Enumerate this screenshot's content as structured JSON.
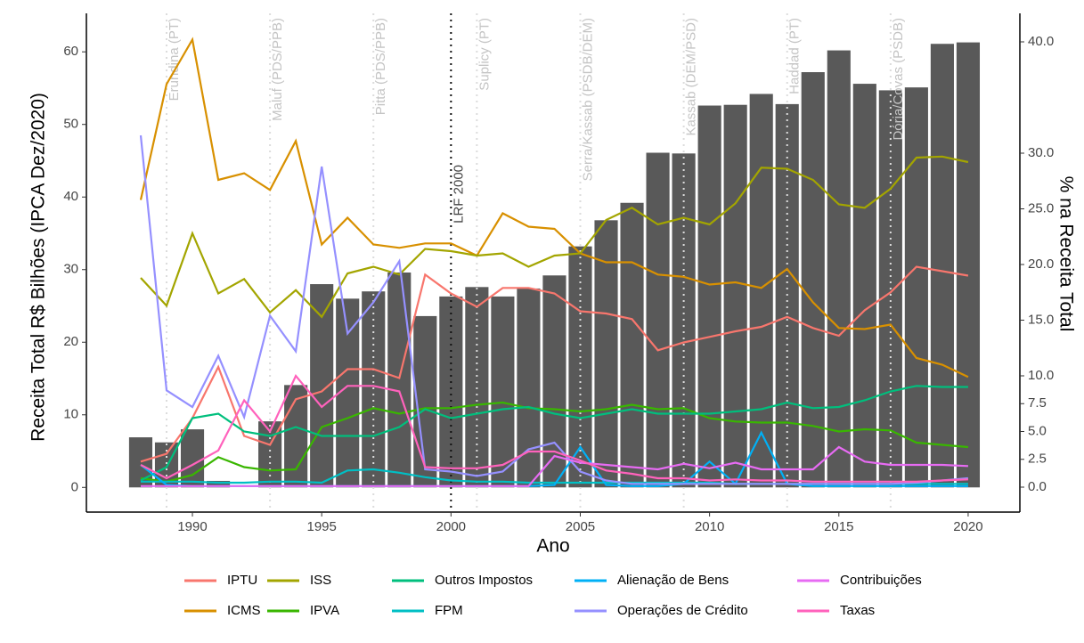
{
  "chart_data": {
    "type": "bar-line",
    "x_label": "Ano",
    "y_label": "Receita Total R$ Bilhões (IPCA Dez/2020)",
    "y2_label": "% na Receita Total",
    "x": [
      1988,
      1989,
      1990,
      1991,
      1992,
      1993,
      1994,
      1995,
      1996,
      1997,
      1998,
      1999,
      2000,
      2001,
      2002,
      2003,
      2004,
      2005,
      2006,
      2007,
      2008,
      2009,
      2010,
      2011,
      2012,
      2013,
      2014,
      2015,
      2016,
      2017,
      2018,
      2019,
      2020
    ],
    "values": [
      6.9,
      6.2,
      8.0,
      0.9,
      null,
      9.1,
      14.1,
      28.0,
      26.0,
      27.0,
      29.6,
      23.6,
      26.3,
      27.6,
      26.3,
      27.4,
      29.2,
      33.2,
      36.8,
      39.2,
      46.1,
      46.0,
      52.6,
      52.7,
      54.2,
      52.8,
      57.2,
      60.2,
      55.6,
      54.7,
      55.1,
      61.1,
      61.3
    ],
    "color": "#595959",
    "series": [
      {
        "name": "IPTU",
        "color": "#F8766D",
        "axis": "y2",
        "values": [
          2.3,
          3.0,
          6.2,
          10.8,
          4.6,
          3.8,
          7.9,
          8.6,
          10.6,
          10.6,
          9.8,
          19.1,
          17.4,
          16.2,
          17.9,
          17.9,
          17.4,
          15.8,
          15.6,
          15.1,
          12.3,
          13.0,
          13.5,
          14.0,
          14.4,
          15.3,
          14.3,
          13.6,
          15.9,
          17.5,
          19.8,
          19.4,
          19.0
        ]
      },
      {
        "name": "ICMS",
        "color": "#D89000",
        "axis": "y2",
        "values": [
          25.8,
          36.2,
          40.2,
          27.6,
          28.2,
          26.7,
          31.1,
          21.8,
          24.2,
          21.8,
          21.5,
          21.9,
          21.9,
          20.8,
          24.6,
          23.4,
          23.2,
          21.0,
          20.2,
          20.2,
          19.1,
          18.9,
          18.2,
          18.4,
          17.9,
          19.6,
          16.6,
          14.3,
          14.2,
          14.6,
          11.6,
          11.0,
          9.9
        ]
      },
      {
        "name": "ISS",
        "color": "#A3A500",
        "axis": "y2",
        "values": [
          18.8,
          16.3,
          22.8,
          17.4,
          18.7,
          15.7,
          17.7,
          15.3,
          19.2,
          19.8,
          19.1,
          21.4,
          21.2,
          20.8,
          21.0,
          19.8,
          20.8,
          21.0,
          24.0,
          25.1,
          23.6,
          24.2,
          23.6,
          25.5,
          28.7,
          28.6,
          27.6,
          25.4,
          25.1,
          26.8,
          29.6,
          29.7,
          29.2
        ]
      },
      {
        "name": "IPVA",
        "color": "#39B600",
        "axis": "y2",
        "values": [
          0.8,
          0.5,
          1.1,
          2.7,
          1.8,
          1.5,
          1.6,
          5.4,
          6.2,
          7.1,
          6.6,
          7.1,
          7.1,
          7.4,
          7.6,
          7.1,
          7.0,
          6.8,
          7.0,
          7.4,
          7.0,
          7.1,
          6.2,
          5.9,
          5.8,
          5.8,
          5.5,
          5.0,
          5.2,
          5.1,
          4.0,
          3.8,
          3.6
        ]
      },
      {
        "name": "Outros Impostos",
        "color": "#00BF7D",
        "axis": "y2",
        "values": [
          0.6,
          1.8,
          6.2,
          6.6,
          5.0,
          4.6,
          5.4,
          4.6,
          4.6,
          4.6,
          5.4,
          7.0,
          6.2,
          6.6,
          7.0,
          7.2,
          6.6,
          6.2,
          6.6,
          7.0,
          6.6,
          6.6,
          6.6,
          6.8,
          7.0,
          7.6,
          7.1,
          7.2,
          7.8,
          8.6,
          9.1,
          9.0,
          9.0
        ]
      },
      {
        "name": "FPM",
        "color": "#00BFC4",
        "axis": "y2",
        "values": [
          0.5,
          0.5,
          0.5,
          0.4,
          0.4,
          0.5,
          0.5,
          0.4,
          1.5,
          1.6,
          1.3,
          0.9,
          0.6,
          0.5,
          0.5,
          0.4,
          0.4,
          0.4,
          0.4,
          0.4,
          0.4,
          0.4,
          0.4,
          0.3,
          0.3,
          0.3,
          0.3,
          0.3,
          0.3,
          0.3,
          0.3,
          0.3,
          0.3
        ]
      },
      {
        "name": "Alienação de Bens",
        "color": "#00B0F6",
        "axis": "y2",
        "values": [
          2.0,
          0.2,
          0.1,
          0.1,
          0.1,
          0.1,
          0.1,
          0.1,
          0.1,
          0.1,
          0.1,
          0.1,
          0.1,
          0.1,
          0.1,
          0.1,
          0.2,
          3.6,
          0.2,
          0.1,
          0.1,
          0.3,
          2.3,
          0.3,
          4.9,
          0.3,
          0.1,
          0.1,
          0.1,
          0.1,
          0.1,
          0.1,
          0.1
        ]
      },
      {
        "name": "Operações de Crédito",
        "color": "#9590FF",
        "axis": "y2",
        "values": [
          31.6,
          8.7,
          7.2,
          11.8,
          6.3,
          15.4,
          12.2,
          28.8,
          13.8,
          16.6,
          20.3,
          1.6,
          1.4,
          1.0,
          1.4,
          3.4,
          4.0,
          1.4,
          0.6,
          0.3,
          0.3,
          0.3,
          0.3,
          0.3,
          0.3,
          0.3,
          0.3,
          0.3,
          0.3,
          0.3,
          0.4,
          0.6,
          0.8
        ]
      },
      {
        "name": "Contribuições",
        "color": "#E76BF3",
        "axis": "y2",
        "values": [
          0.1,
          0.1,
          0.1,
          0.1,
          0.1,
          0.1,
          0.1,
          0.1,
          0.1,
          0.1,
          0.1,
          0.1,
          0.1,
          0.1,
          0.1,
          0.1,
          2.8,
          2.2,
          2.0,
          1.8,
          1.6,
          2.1,
          1.7,
          2.2,
          1.6,
          1.6,
          1.6,
          3.6,
          2.3,
          2.0,
          2.0,
          2.0,
          1.9
        ]
      },
      {
        "name": "Taxas",
        "color": "#FF62BC",
        "axis": "y2",
        "values": [
          2.0,
          0.8,
          2.0,
          3.3,
          7.8,
          5.0,
          10.0,
          7.2,
          9.1,
          9.1,
          8.6,
          1.8,
          1.7,
          1.7,
          2.0,
          3.2,
          3.2,
          2.4,
          1.5,
          1.2,
          0.8,
          0.8,
          0.6,
          0.7,
          0.6,
          0.6,
          0.5,
          0.5,
          0.5,
          0.5,
          0.5,
          0.6,
          0.7
        ]
      }
    ],
    "xlim": [
      1985.9,
      2022.0
    ],
    "xticks": [
      1990,
      1995,
      2000,
      2005,
      2010,
      2015,
      2020
    ],
    "ylim": [
      -3.4,
      65.3
    ],
    "yticks": [
      0,
      10,
      20,
      30,
      40,
      50,
      60
    ],
    "y2lim": [
      -2.24,
      42.56
    ],
    "y2ticks": [
      {
        "value": 0,
        "label": "0.0"
      },
      {
        "value": 2.5,
        "label": "2.5"
      },
      {
        "value": 5,
        "label": "5.0"
      },
      {
        "value": 7.5,
        "label": "7.5"
      },
      {
        "value": 10,
        "label": "10.0"
      },
      {
        "value": 15,
        "label": "15.0"
      },
      {
        "value": 20,
        "label": "20.0"
      },
      {
        "value": 25,
        "label": "25.0"
      },
      {
        "value": 30,
        "label": "30.0"
      },
      {
        "value": 40,
        "label": "40.0"
      }
    ],
    "annotations": [
      {
        "x": 1989,
        "label": "Erundina (PT)",
        "color": "#c4c4c4"
      },
      {
        "x": 1993,
        "label": "Maluf (PDS/PPB)",
        "color": "#c4c4c4"
      },
      {
        "x": 1997,
        "label": "Pitta (PDS/PPB)",
        "color": "#c4c4c4"
      },
      {
        "x": 2000,
        "label": "LRF 2000",
        "color": "#111111"
      },
      {
        "x": 2001,
        "label": "Suplicy (PT)",
        "color": "#c4c4c4"
      },
      {
        "x": 2005,
        "label": "Serra/Kassab (PSDB/DEM)",
        "color": "#c4c4c4"
      },
      {
        "x": 2009,
        "label": "Kassab (DEM/PSD)",
        "color": "#c4c4c4"
      },
      {
        "x": 2013,
        "label": "Haddad (PT)",
        "color": "#c4c4c4"
      },
      {
        "x": 2017,
        "label": "Dória/Covas (PSDB)",
        "color": "#c4c4c4"
      }
    ],
    "legend": "bottom"
  }
}
